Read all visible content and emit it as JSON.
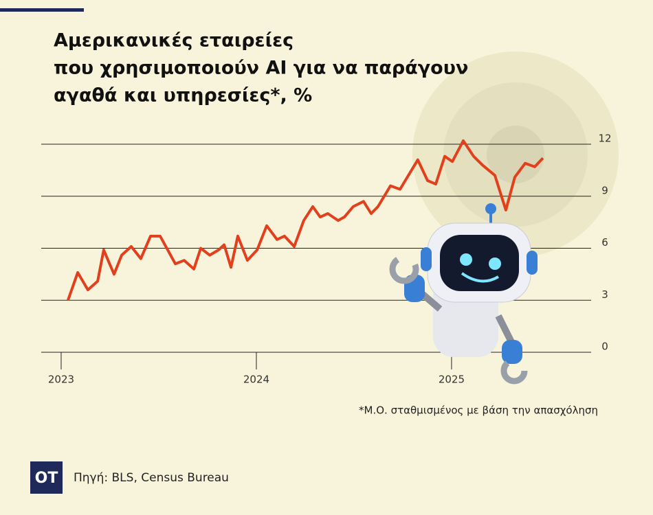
{
  "header": {
    "title_lines": [
      "Αμερικανικές εταιρείες",
      "που χρησιμοποιούν AI για να παράγουν",
      "αγαθά και υπηρεσίες*, %"
    ]
  },
  "chart_data": {
    "type": "line",
    "x": [
      2023.035,
      2023.085,
      2023.137,
      2023.187,
      2023.218,
      2023.271,
      2023.31,
      2023.359,
      2023.408,
      2023.458,
      2023.507,
      2023.585,
      2023.63,
      2023.68,
      2023.715,
      2023.761,
      2023.806,
      2023.835,
      2023.87,
      2023.905,
      2023.954,
      2024.004,
      2024.053,
      2024.106,
      2024.144,
      2024.194,
      2024.243,
      2024.289,
      2024.327,
      2024.366,
      2024.419,
      2024.451,
      2024.496,
      2024.549,
      2024.588,
      2024.623,
      2024.687,
      2024.736,
      2024.827,
      2024.877,
      2024.919,
      2024.965,
      2025.004,
      2025.06,
      2025.113,
      2025.158,
      2025.222,
      2025.278,
      2025.324,
      2025.377,
      2025.426,
      2025.468
    ],
    "values": [
      3.0,
      4.6,
      3.6,
      4.1,
      5.9,
      4.5,
      5.6,
      6.1,
      5.4,
      6.7,
      6.7,
      5.1,
      5.3,
      4.8,
      6.0,
      5.6,
      5.9,
      6.2,
      4.9,
      6.7,
      5.3,
      5.9,
      7.3,
      6.5,
      6.7,
      6.1,
      7.6,
      8.4,
      7.8,
      8.0,
      7.6,
      7.8,
      8.4,
      8.7,
      8.0,
      8.4,
      9.6,
      9.4,
      11.1,
      9.9,
      9.7,
      11.3,
      11.0,
      12.2,
      11.3,
      10.8,
      10.2,
      8.2,
      10.1,
      10.9,
      10.7,
      11.2
    ],
    "color": "#e2401c",
    "xlim": [
      2022.898,
      2025.715
    ],
    "xticks": [
      {
        "value": 2023,
        "label": "2023"
      },
      {
        "value": 2024,
        "label": "2024"
      },
      {
        "value": 2025,
        "label": "2025"
      }
    ],
    "ylim": [
      0,
      12
    ],
    "yticks": [
      0,
      3,
      6,
      9,
      12
    ],
    "grid": true
  },
  "footnote": "*Μ.Ο. σταθμισμένος με βάση την απασχόληση",
  "footer": {
    "logo": "OT",
    "source": "Πηγή: BLS, Census Bureau"
  }
}
